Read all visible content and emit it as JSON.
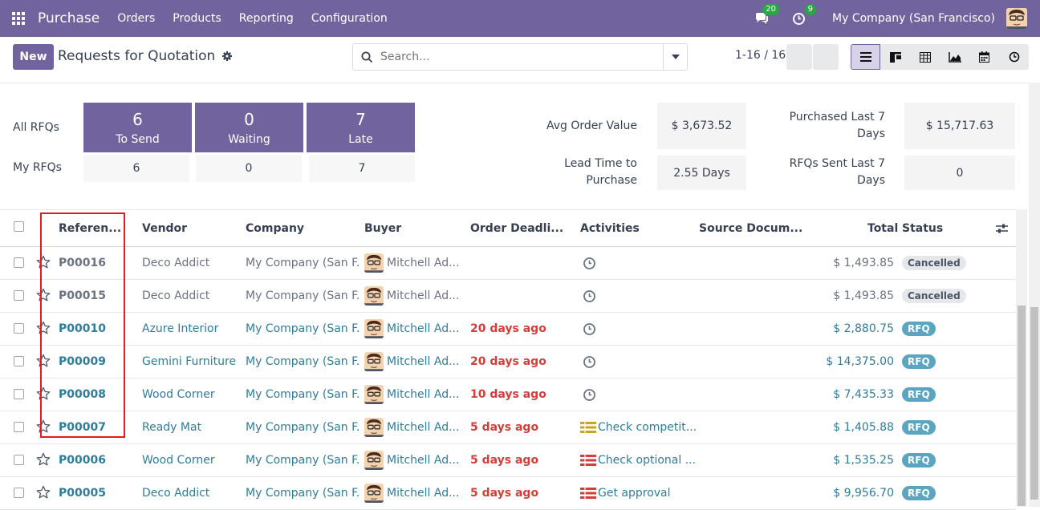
{
  "navbar": {
    "app_name": "Purchase",
    "menu": [
      "Orders",
      "Products",
      "Reporting",
      "Configuration"
    ],
    "messages_count": "20",
    "activities_count": "9",
    "company": "My Company (San Francisco)"
  },
  "control_panel": {
    "new_label": "New",
    "title": "Requests for Quotation",
    "search_placeholder": "Search...",
    "pager": "1-16 / 16",
    "views": [
      "list-icon",
      "kanban-icon",
      "pivot-icon",
      "graph-icon",
      "calendar-icon",
      "activity-icon"
    ]
  },
  "dashboard": {
    "all_label": "All RFQs",
    "my_label": "My RFQs",
    "tiles": [
      {
        "count": "6",
        "label": "To Send",
        "mine": "6"
      },
      {
        "count": "0",
        "label": "Waiting",
        "mine": "0"
      },
      {
        "count": "7",
        "label": "Late",
        "mine": "7"
      }
    ],
    "kpis": {
      "avg_order_label": "Avg Order Value",
      "avg_order_value": "$ 3,673.52",
      "lead_time_label_1": "Lead Time to",
      "lead_time_label_2": "Purchase",
      "lead_time_value": "2.55 Days",
      "purchased_label_1": "Purchased Last 7",
      "purchased_label_2": "Days",
      "purchased_value": "$ 15,717.63",
      "rfqs_sent_label_1": "RFQs Sent Last 7",
      "rfqs_sent_label_2": "Days",
      "rfqs_sent_value": "0"
    }
  },
  "table": {
    "columns": [
      "Referen...",
      "Vendor",
      "Company",
      "Buyer",
      "Order Deadli...",
      "Activities",
      "Source Docum...",
      "Total",
      "Status"
    ],
    "rows": [
      {
        "ref": "P00016",
        "vendor": "Deco Addict",
        "company": "My Company (San F...",
        "buyer": "Mitchell Ad...",
        "deadline": "",
        "activity": "",
        "activity_type": "clock",
        "total": "$ 1,493.85",
        "status": "Cancelled",
        "status_type": "cancel"
      },
      {
        "ref": "P00015",
        "vendor": "Deco Addict",
        "company": "My Company (San F...",
        "buyer": "Mitchell Ad...",
        "deadline": "",
        "activity": "",
        "activity_type": "clock",
        "total": "$ 1,493.85",
        "status": "Cancelled",
        "status_type": "cancel"
      },
      {
        "ref": "P00010",
        "vendor": "Azure Interior",
        "company": "My Company (San F...",
        "buyer": "Mitchell Ad...",
        "deadline": "20 days ago",
        "activity": "",
        "activity_type": "clock",
        "total": "$ 2,880.75",
        "status": "RFQ",
        "status_type": "rfq"
      },
      {
        "ref": "P00009",
        "vendor": "Gemini Furniture",
        "company": "My Company (San F...",
        "buyer": "Mitchell Ad...",
        "deadline": "20 days ago",
        "activity": "",
        "activity_type": "clock",
        "total": "$ 14,375.00",
        "status": "RFQ",
        "status_type": "rfq"
      },
      {
        "ref": "P00008",
        "vendor": "Wood Corner",
        "company": "My Company (San F...",
        "buyer": "Mitchell Ad...",
        "deadline": "10 days ago",
        "activity": "",
        "activity_type": "clock",
        "total": "$ 7,435.33",
        "status": "RFQ",
        "status_type": "rfq"
      },
      {
        "ref": "P00007",
        "vendor": "Ready Mat",
        "company": "My Company (San F...",
        "buyer": "Mitchell Ad...",
        "deadline": "5 days ago",
        "activity": "Check competit...",
        "activity_type": "todo-yellow",
        "total": "$ 1,405.88",
        "status": "RFQ",
        "status_type": "rfq"
      },
      {
        "ref": "P00006",
        "vendor": "Wood Corner",
        "company": "My Company (San F...",
        "buyer": "Mitchell Ad...",
        "deadline": "5 days ago",
        "activity": "Check optional ...",
        "activity_type": "todo-red",
        "total": "$ 1,535.25",
        "status": "RFQ",
        "status_type": "rfq"
      },
      {
        "ref": "P00005",
        "vendor": "Deco Addict",
        "company": "My Company (San F...",
        "buyer": "Mitchell Ad...",
        "deadline": "5 days ago",
        "activity": "Get approval",
        "activity_type": "todo-red",
        "total": "$ 9,956.70",
        "status": "RFQ",
        "status_type": "rfq"
      }
    ]
  },
  "colors": {
    "brand": "#71639e",
    "link": "#2e7d9a",
    "late": "#d23f3a",
    "rfq_badge": "#5ba5c1",
    "highlight": "#e11d1d"
  }
}
